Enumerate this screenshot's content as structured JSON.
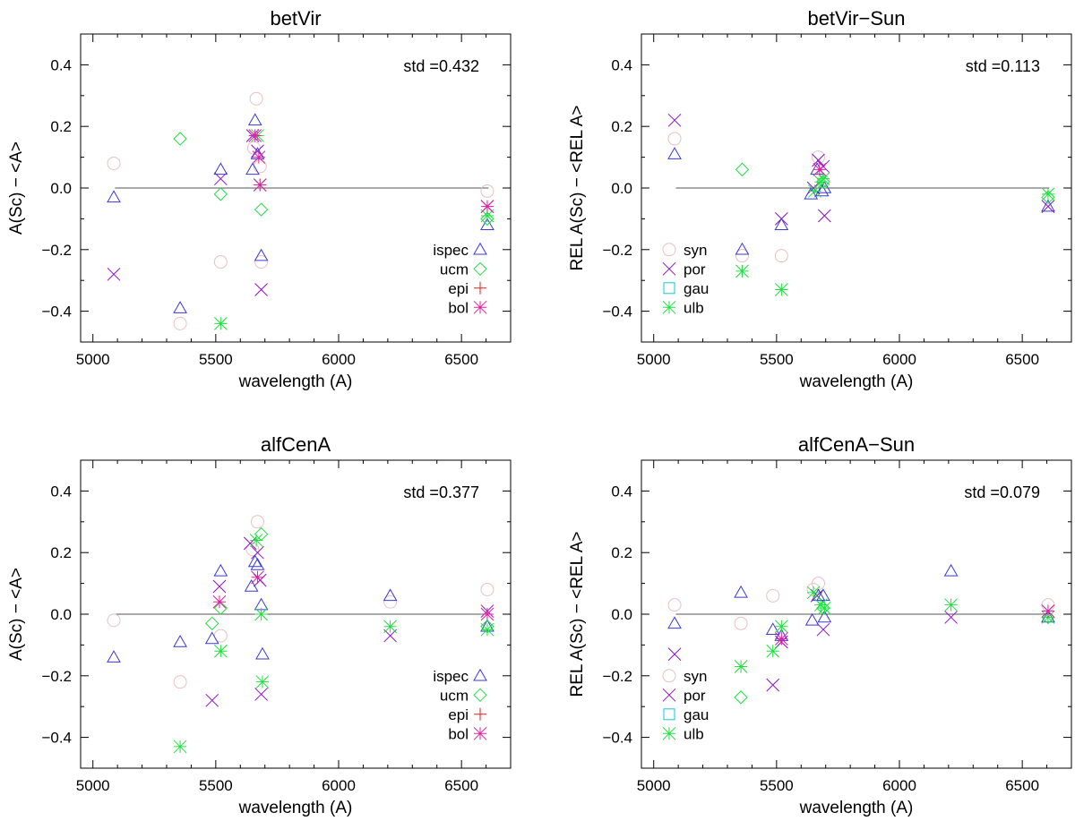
{
  "colors": {
    "ispec": "#3a3ad6",
    "ucm": "#22dd44",
    "epi": "#e02020",
    "bol": "#e020a0",
    "syn": "#e8c0c4",
    "por": "#9010c8",
    "gau": "#10c8d8",
    "ulb": "#20e040",
    "axis": "#000000",
    "zero": "#555555"
  },
  "chart_data": [
    {
      "type": "scatter",
      "title": "betVir",
      "xlabel": "wavelength (A)",
      "ylabel": "A(Sc) − <A>",
      "xlim": [
        4950,
        6700
      ],
      "ylim": [
        -0.5,
        0.5
      ],
      "xticks": [
        5000,
        5500,
        6000,
        6500
      ],
      "yticks": [
        -0.4,
        -0.2,
        0.0,
        0.2,
        0.4
      ],
      "ytick_labels": [
        "−0.4",
        "−0.2",
        "0.0",
        "0.2",
        "0.4"
      ],
      "std_text": "std =0.432",
      "zero_line": [
        5090,
        6610
      ],
      "legend": [
        {
          "label": "ispec",
          "marker": "triangle",
          "color_key": "ispec"
        },
        {
          "label": "ucm",
          "marker": "diamond",
          "color_key": "ucm"
        },
        {
          "label": "epi",
          "marker": "plus",
          "color_key": "epi"
        },
        {
          "label": "bol",
          "marker": "asterisk",
          "color_key": "bol"
        }
      ],
      "legend_position": "bottom-right",
      "series": [
        {
          "name": "syn",
          "marker": "circle",
          "color_key": "syn",
          "points": [
            [
              5085,
              0.08
            ],
            [
              5355,
              -0.44
            ],
            [
              5520,
              -0.24
            ],
            [
              5655,
              0.13
            ],
            [
              5665,
              0.29
            ],
            [
              5680,
              0.07
            ],
            [
              5685,
              -0.24
            ],
            [
              6605,
              -0.01
            ]
          ]
        },
        {
          "name": "por",
          "marker": "x",
          "color_key": "por",
          "points": [
            [
              5085,
              -0.28
            ],
            [
              5520,
              0.03
            ],
            [
              5650,
              0.17
            ],
            [
              5670,
              0.12
            ],
            [
              5680,
              0.01
            ],
            [
              5685,
              -0.33
            ],
            [
              6605,
              -0.06
            ]
          ]
        },
        {
          "name": "ispec",
          "marker": "triangle",
          "color_key": "ispec",
          "points": [
            [
              5085,
              -0.03
            ],
            [
              5355,
              -0.39
            ],
            [
              5520,
              0.06
            ],
            [
              5650,
              0.06
            ],
            [
              5660,
              0.22
            ],
            [
              5670,
              0.11
            ],
            [
              5685,
              -0.22
            ],
            [
              6605,
              -0.12
            ]
          ]
        },
        {
          "name": "ucm",
          "marker": "diamond",
          "color_key": "ucm",
          "points": [
            [
              5355,
              0.16
            ],
            [
              5520,
              -0.02
            ],
            [
              5685,
              -0.07
            ],
            [
              6605,
              -0.1
            ]
          ]
        },
        {
          "name": "ulb",
          "marker": "asterisk",
          "color_key": "ulb",
          "points": [
            [
              5520,
              -0.44
            ],
            [
              5670,
              0.17
            ],
            [
              5680,
              0.01
            ],
            [
              6605,
              -0.09
            ]
          ]
        },
        {
          "name": "bol",
          "marker": "asterisk",
          "color_key": "bol",
          "points": [
            [
              5660,
              0.17
            ],
            [
              5675,
              0.1
            ],
            [
              5680,
              0.01
            ],
            [
              6605,
              -0.06
            ]
          ]
        }
      ]
    },
    {
      "type": "scatter",
      "title": "betVir−Sun",
      "xlabel": "wavelength (A)",
      "ylabel": "REL A(Sc) − <REL A>",
      "xlim": [
        4950,
        6700
      ],
      "ylim": [
        -0.5,
        0.5
      ],
      "xticks": [
        5000,
        5500,
        6000,
        6500
      ],
      "yticks": [
        -0.4,
        -0.2,
        0.0,
        0.2,
        0.4
      ],
      "ytick_labels": [
        "−0.4",
        "−0.2",
        "0.0",
        "0.2",
        "0.4"
      ],
      "std_text": "std =0.113",
      "zero_line": [
        5090,
        6610
      ],
      "legend": [
        {
          "label": "syn",
          "marker": "circle",
          "color_key": "syn"
        },
        {
          "label": "por",
          "marker": "x",
          "color_key": "por"
        },
        {
          "label": "gau",
          "marker": "square",
          "color_key": "gau"
        },
        {
          "label": "ulb",
          "marker": "asterisk",
          "color_key": "ulb"
        }
      ],
      "legend_position": "bottom-left",
      "series": [
        {
          "name": "syn",
          "marker": "circle",
          "color_key": "syn",
          "points": [
            [
              5085,
              0.16
            ],
            [
              5360,
              -0.22
            ],
            [
              5520,
              -0.22
            ],
            [
              5670,
              0.1
            ],
            [
              5690,
              0.02
            ]
          ]
        },
        {
          "name": "por",
          "marker": "x",
          "color_key": "por",
          "points": [
            [
              5085,
              0.22
            ],
            [
              5520,
              -0.1
            ],
            [
              5650,
              0.0
            ],
            [
              5670,
              0.09
            ],
            [
              5690,
              0.07
            ],
            [
              5695,
              -0.09
            ],
            [
              6605,
              -0.06
            ]
          ]
        },
        {
          "name": "ispec",
          "marker": "triangle",
          "color_key": "ispec",
          "points": [
            [
              5085,
              0.11
            ],
            [
              5360,
              -0.2
            ],
            [
              5520,
              -0.12
            ],
            [
              5640,
              -0.02
            ],
            [
              5665,
              0.06
            ],
            [
              5685,
              -0.01
            ],
            [
              5695,
              0.0
            ],
            [
              6605,
              -0.06
            ]
          ]
        },
        {
          "name": "ucm",
          "marker": "diamond",
          "color_key": "ucm",
          "points": [
            [
              5360,
              0.06
            ],
            [
              5690,
              0.02
            ],
            [
              6605,
              -0.03
            ]
          ]
        },
        {
          "name": "ulb",
          "marker": "asterisk",
          "color_key": "ulb",
          "points": [
            [
              5360,
              -0.27
            ],
            [
              5520,
              -0.33
            ],
            [
              5655,
              -0.01
            ],
            [
              5680,
              0.02
            ],
            [
              5690,
              0.03
            ],
            [
              6605,
              -0.02
            ]
          ]
        },
        {
          "name": "bol",
          "marker": "asterisk",
          "color_key": "bol",
          "points": [
            [
              5675,
              0.06
            ]
          ]
        }
      ]
    },
    {
      "type": "scatter",
      "title": "alfCenA",
      "xlabel": "wavelength (A)",
      "ylabel": "A(Sc) − <A>",
      "xlim": [
        4950,
        6700
      ],
      "ylim": [
        -0.5,
        0.5
      ],
      "xticks": [
        5000,
        5500,
        6000,
        6500
      ],
      "yticks": [
        -0.4,
        -0.2,
        0.0,
        0.2,
        0.4
      ],
      "ytick_labels": [
        "−0.4",
        "−0.2",
        "0.0",
        "0.2",
        "0.4"
      ],
      "std_text": "std =0.377",
      "zero_line": [
        5090,
        6610
      ],
      "legend": [
        {
          "label": "ispec",
          "marker": "triangle",
          "color_key": "ispec"
        },
        {
          "label": "ucm",
          "marker": "diamond",
          "color_key": "ucm"
        },
        {
          "label": "epi",
          "marker": "plus",
          "color_key": "epi"
        },
        {
          "label": "bol",
          "marker": "asterisk",
          "color_key": "bol"
        }
      ],
      "legend_position": "bottom-right",
      "series": [
        {
          "name": "syn",
          "marker": "circle",
          "color_key": "syn",
          "points": [
            [
              5085,
              -0.02
            ],
            [
              5355,
              -0.22
            ],
            [
              5520,
              -0.07
            ],
            [
              5650,
              0.21
            ],
            [
              5670,
              0.3
            ],
            [
              6210,
              0.04
            ],
            [
              6605,
              0.08
            ]
          ]
        },
        {
          "name": "por",
          "marker": "x",
          "color_key": "por",
          "points": [
            [
              5485,
              -0.28
            ],
            [
              5515,
              0.09
            ],
            [
              5640,
              0.23
            ],
            [
              5670,
              0.2
            ],
            [
              5680,
              0.11
            ],
            [
              5685,
              -0.26
            ],
            [
              6210,
              -0.07
            ],
            [
              6605,
              0.01
            ]
          ]
        },
        {
          "name": "ispec",
          "marker": "triangle",
          "color_key": "ispec",
          "points": [
            [
              5085,
              -0.14
            ],
            [
              5355,
              -0.09
            ],
            [
              5485,
              -0.08
            ],
            [
              5520,
              0.14
            ],
            [
              5645,
              0.09
            ],
            [
              5660,
              0.17
            ],
            [
              5670,
              0.16
            ],
            [
              5685,
              0.03
            ],
            [
              5690,
              -0.13
            ],
            [
              6210,
              0.06
            ],
            [
              6605,
              -0.04
            ]
          ]
        },
        {
          "name": "ucm",
          "marker": "diamond",
          "color_key": "ucm",
          "points": [
            [
              5485,
              -0.03
            ],
            [
              5520,
              0.02
            ],
            [
              5685,
              0.26
            ],
            [
              6605,
              -0.04
            ]
          ]
        },
        {
          "name": "ulb",
          "marker": "asterisk",
          "color_key": "ulb",
          "points": [
            [
              5355,
              -0.43
            ],
            [
              5520,
              -0.12
            ],
            [
              5665,
              0.24
            ],
            [
              5685,
              0.0
            ],
            [
              5690,
              -0.22
            ],
            [
              6210,
              -0.04
            ],
            [
              6605,
              -0.05
            ]
          ]
        },
        {
          "name": "bol",
          "marker": "asterisk",
          "color_key": "bol",
          "points": [
            [
              5515,
              0.04
            ],
            [
              5670,
              0.12
            ],
            [
              6605,
              0.0
            ]
          ]
        }
      ]
    },
    {
      "type": "scatter",
      "title": "alfCenA−Sun",
      "xlabel": "wavelength (A)",
      "ylabel": "REL A(Sc) − <REL A>",
      "xlim": [
        4950,
        6700
      ],
      "ylim": [
        -0.5,
        0.5
      ],
      "xticks": [
        5000,
        5500,
        6000,
        6500
      ],
      "yticks": [
        -0.4,
        -0.2,
        0.0,
        0.2,
        0.4
      ],
      "ytick_labels": [
        "−0.4",
        "−0.2",
        "0.0",
        "0.2",
        "0.4"
      ],
      "std_text": "std =0.079",
      "zero_line": [
        5090,
        6610
      ],
      "legend": [
        {
          "label": "syn",
          "marker": "circle",
          "color_key": "syn"
        },
        {
          "label": "por",
          "marker": "x",
          "color_key": "por"
        },
        {
          "label": "gau",
          "marker": "square",
          "color_key": "gau"
        },
        {
          "label": "ulb",
          "marker": "asterisk",
          "color_key": "ulb"
        }
      ],
      "legend_position": "bottom-left",
      "series": [
        {
          "name": "syn",
          "marker": "circle",
          "color_key": "syn",
          "points": [
            [
              5085,
              0.03
            ],
            [
              5355,
              -0.03
            ],
            [
              5485,
              0.06
            ],
            [
              5650,
              0.08
            ],
            [
              5670,
              0.1
            ],
            [
              6605,
              0.03
            ]
          ]
        },
        {
          "name": "por",
          "marker": "x",
          "color_key": "por",
          "points": [
            [
              5085,
              -0.13
            ],
            [
              5485,
              -0.23
            ],
            [
              5520,
              -0.09
            ],
            [
              5665,
              0.06
            ],
            [
              5690,
              -0.05
            ],
            [
              6210,
              -0.01
            ],
            [
              6605,
              0.01
            ]
          ]
        },
        {
          "name": "ispec",
          "marker": "triangle",
          "color_key": "ispec",
          "points": [
            [
              5085,
              -0.03
            ],
            [
              5355,
              0.07
            ],
            [
              5485,
              -0.05
            ],
            [
              5520,
              -0.07
            ],
            [
              5645,
              -0.02
            ],
            [
              5670,
              0.06
            ],
            [
              5690,
              0.06
            ],
            [
              5695,
              -0.01
            ],
            [
              6210,
              0.14
            ],
            [
              6605,
              -0.01
            ]
          ]
        },
        {
          "name": "ucm",
          "marker": "diamond",
          "color_key": "ucm",
          "points": [
            [
              5355,
              -0.27
            ],
            [
              5690,
              0.02
            ],
            [
              6605,
              -0.01
            ]
          ]
        },
        {
          "name": "ulb",
          "marker": "asterisk",
          "color_key": "ulb",
          "points": [
            [
              5355,
              -0.17
            ],
            [
              5485,
              -0.12
            ],
            [
              5520,
              -0.04
            ],
            [
              5650,
              0.07
            ],
            [
              5680,
              0.03
            ],
            [
              5695,
              0.02
            ],
            [
              6210,
              0.03
            ],
            [
              6605,
              -0.01
            ]
          ]
        },
        {
          "name": "bol",
          "marker": "asterisk",
          "color_key": "bol",
          "points": [
            [
              5520,
              -0.08
            ],
            [
              6605,
              0.01
            ]
          ]
        }
      ]
    }
  ]
}
